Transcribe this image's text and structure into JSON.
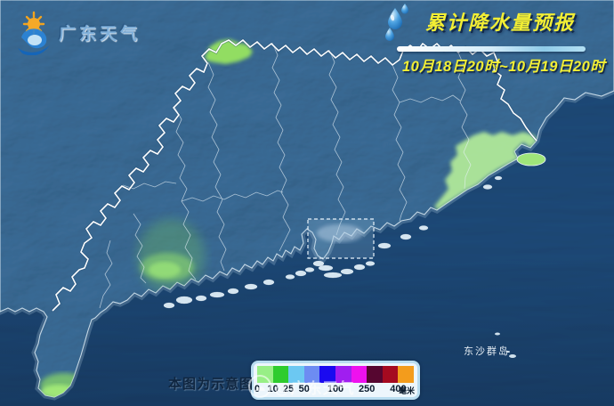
{
  "logo": {
    "text": "广东天气",
    "icon": "sun-cloud-logo-icon"
  },
  "header": {
    "title": "累计降水量预报",
    "time_range": "10月18日20时~10月19日20时",
    "title_color": "#f2ee34",
    "icon": "raindrops-icon"
  },
  "map": {
    "region": "广东省",
    "dongsha_label": "东沙群岛",
    "sea_color": "#3d698d",
    "land_color": "#5e8cb0",
    "boundary_color": "#fdfeff",
    "precip_green_north": "#97e460",
    "precip_green_east": "#b4ec9a",
    "precip_green_southwest": "#8fd96d",
    "precip_green_leizhou": "#9be86d"
  },
  "footer": {
    "note": "本图为示意图",
    "watermark": "@广东天气"
  },
  "legend": {
    "unit": "毫米",
    "colors": [
      "#98ef86",
      "#2ecc2e",
      "#6cc8f2",
      "#6d8cf2",
      "#1a0af0",
      "#a01ef0",
      "#ee11ee",
      "#560630",
      "#a50a20",
      "#f39c1c"
    ],
    "ticks": [
      {
        "label": "0",
        "pos": 0
      },
      {
        "label": "10",
        "pos": 10
      },
      {
        "label": "25",
        "pos": 20
      },
      {
        "label": "50",
        "pos": 30
      },
      {
        "label": "100",
        "pos": 50
      },
      {
        "label": "250",
        "pos": 70
      },
      {
        "label": "400",
        "pos": 90
      }
    ]
  }
}
